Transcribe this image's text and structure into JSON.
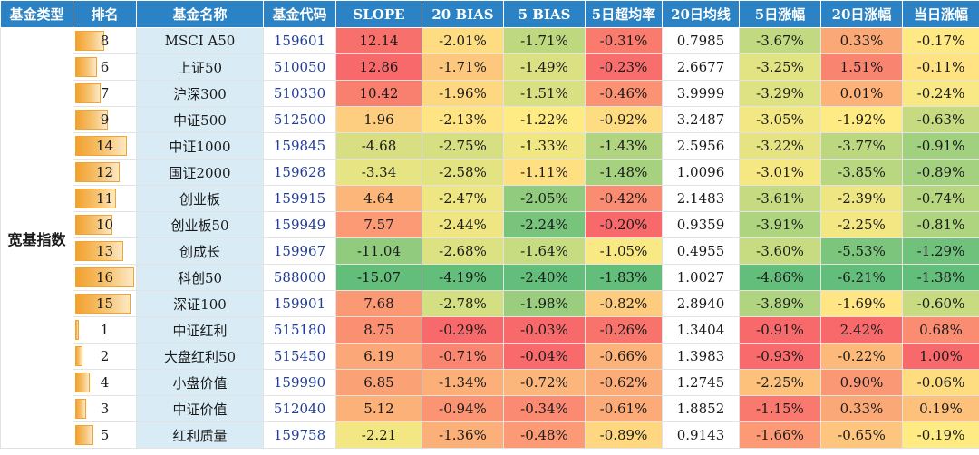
{
  "headers": [
    "基金类型",
    "排名",
    "基金名称",
    "基金代码",
    "SLOPE",
    "20 BIAS",
    "5 BIAS",
    "5日超均率",
    "20日均线",
    "5日涨幅",
    "20日涨幅",
    "当日涨幅"
  ],
  "category": "宽基指数",
  "max_rank": 16,
  "rows": [
    {
      "rank": "8",
      "name": "MSCI A50",
      "code": "159601",
      "slope": "12.14",
      "bias20": "-2.01%",
      "bias5": "-1.71%",
      "over5": "-0.31%",
      "ma20": "0.7985",
      "chg5": "-3.67%",
      "chg20": "0.33%",
      "chg1": "-0.17%"
    },
    {
      "rank": "6",
      "name": "上证50",
      "code": "510050",
      "slope": "12.86",
      "bias20": "-1.71%",
      "bias5": "-1.49%",
      "over5": "-0.23%",
      "ma20": "2.6677",
      "chg5": "-3.25%",
      "chg20": "1.51%",
      "chg1": "-0.11%"
    },
    {
      "rank": "7",
      "name": "沪深300",
      "code": "510330",
      "slope": "10.42",
      "bias20": "-1.96%",
      "bias5": "-1.51%",
      "over5": "-0.46%",
      "ma20": "3.9999",
      "chg5": "-3.29%",
      "chg20": "0.01%",
      "chg1": "-0.24%"
    },
    {
      "rank": "9",
      "name": "中证500",
      "code": "512500",
      "slope": "1.96",
      "bias20": "-2.13%",
      "bias5": "-1.22%",
      "over5": "-0.92%",
      "ma20": "3.2487",
      "chg5": "-3.05%",
      "chg20": "-1.92%",
      "chg1": "-0.63%"
    },
    {
      "rank": "14",
      "name": "中证1000",
      "code": "159845",
      "slope": "-4.68",
      "bias20": "-2.75%",
      "bias5": "-1.33%",
      "over5": "-1.43%",
      "ma20": "2.5956",
      "chg5": "-3.22%",
      "chg20": "-3.77%",
      "chg1": "-0.91%"
    },
    {
      "rank": "12",
      "name": "国证2000",
      "code": "159628",
      "slope": "-3.34",
      "bias20": "-2.58%",
      "bias5": "-1.11%",
      "over5": "-1.48%",
      "ma20": "1.0096",
      "chg5": "-3.01%",
      "chg20": "-3.85%",
      "chg1": "-0.89%"
    },
    {
      "rank": "11",
      "name": "创业板",
      "code": "159915",
      "slope": "4.64",
      "bias20": "-2.47%",
      "bias5": "-2.05%",
      "over5": "-0.42%",
      "ma20": "2.1483",
      "chg5": "-3.61%",
      "chg20": "-2.39%",
      "chg1": "-0.74%"
    },
    {
      "rank": "10",
      "name": "创业板50",
      "code": "159949",
      "slope": "7.57",
      "bias20": "-2.44%",
      "bias5": "-2.24%",
      "over5": "-0.20%",
      "ma20": "0.9359",
      "chg5": "-3.91%",
      "chg20": "-2.25%",
      "chg1": "-0.81%"
    },
    {
      "rank": "13",
      "name": "创成长",
      "code": "159967",
      "slope": "-11.04",
      "bias20": "-2.68%",
      "bias5": "-1.64%",
      "over5": "-1.05%",
      "ma20": "0.4955",
      "chg5": "-3.60%",
      "chg20": "-5.53%",
      "chg1": "-1.29%"
    },
    {
      "rank": "16",
      "name": "科创50",
      "code": "588000",
      "slope": "-15.07",
      "bias20": "-4.19%",
      "bias5": "-2.40%",
      "over5": "-1.83%",
      "ma20": "1.0027",
      "chg5": "-4.86%",
      "chg20": "-6.21%",
      "chg1": "-1.38%"
    },
    {
      "rank": "15",
      "name": "深证100",
      "code": "159901",
      "slope": "7.68",
      "bias20": "-2.78%",
      "bias5": "-1.98%",
      "over5": "-0.82%",
      "ma20": "2.8940",
      "chg5": "-3.89%",
      "chg20": "-1.69%",
      "chg1": "-0.60%"
    },
    {
      "rank": "1",
      "name": "中证红利",
      "code": "515180",
      "slope": "8.75",
      "bias20": "-0.29%",
      "bias5": "-0.03%",
      "over5": "-0.26%",
      "ma20": "1.3404",
      "chg5": "-0.91%",
      "chg20": "2.42%",
      "chg1": "0.68%"
    },
    {
      "rank": "2",
      "name": "大盘红利50",
      "code": "515450",
      "slope": "6.19",
      "bias20": "-0.71%",
      "bias5": "-0.04%",
      "over5": "-0.66%",
      "ma20": "1.3983",
      "chg5": "-0.93%",
      "chg20": "-0.22%",
      "chg1": "1.00%"
    },
    {
      "rank": "4",
      "name": "小盘价值",
      "code": "159990",
      "slope": "6.85",
      "bias20": "-1.34%",
      "bias5": "-0.72%",
      "over5": "-0.62%",
      "ma20": "1.2745",
      "chg5": "-2.25%",
      "chg20": "0.90%",
      "chg1": "-0.06%"
    },
    {
      "rank": "3",
      "name": "中证价值",
      "code": "512040",
      "slope": "5.12",
      "bias20": "-0.94%",
      "bias5": "-0.34%",
      "over5": "-0.61%",
      "ma20": "1.8852",
      "chg5": "-1.15%",
      "chg20": "0.33%",
      "chg1": "0.19%"
    },
    {
      "rank": "5",
      "name": "红利质量",
      "code": "159758",
      "slope": "-2.21",
      "bias20": "-1.36%",
      "bias5": "-0.48%",
      "over5": "-0.89%",
      "ma20": "0.9143",
      "chg5": "-1.66%",
      "chg20": "-0.65%",
      "chg1": "-0.19%"
    }
  ],
  "colors": {
    "header_bg": "#2b82c4",
    "name_bg": "#d9ecf6",
    "code_text": "#1f3d99",
    "scale_low": "#63be7b",
    "scale_mid": "#ffeb84",
    "scale_high": "#f8696b"
  }
}
